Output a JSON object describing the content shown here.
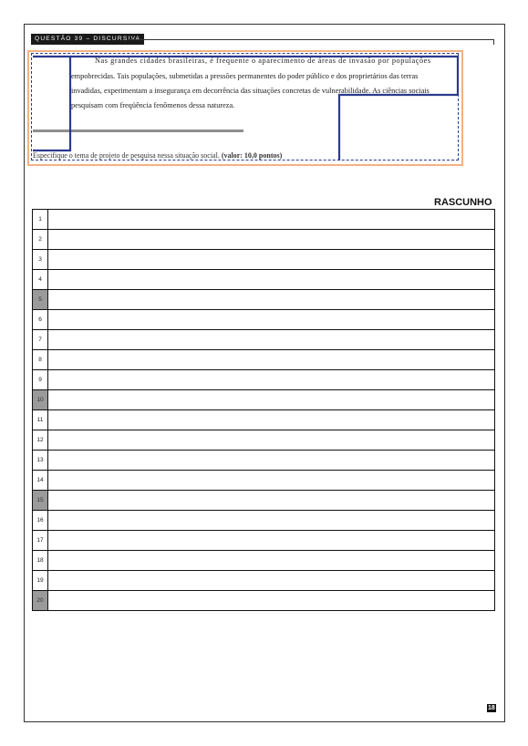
{
  "header": {
    "question_tag": "QUESTÃO 39 – DISCURSIVA"
  },
  "text_lines": [
    "Nas grandes cidades brasileiras, é frequente o aparecimento de áreas de invasão por populações",
    "empobrecidas. Tais populações, submetidas a pressões permanentes do poder público e dos proprietários das terras",
    "invadidas, experimentam a insegurança em decorrência das situações concretas de vulnerabilidade. As ciências sociais",
    "pesquisam com freqüência fenômenos dessa natureza."
  ],
  "task": {
    "text": "Especifique o tema de projeto de pesquisa nessa situação social.",
    "value": "(valor: 10,0 pontos)"
  },
  "draft": {
    "title": "RASCUNHO",
    "lines": [
      {
        "n": "1",
        "shaded": false
      },
      {
        "n": "2",
        "shaded": false
      },
      {
        "n": "3",
        "shaded": false
      },
      {
        "n": "4",
        "shaded": false
      },
      {
        "n": "5",
        "shaded": true
      },
      {
        "n": "6",
        "shaded": false
      },
      {
        "n": "7",
        "shaded": false
      },
      {
        "n": "8",
        "shaded": false
      },
      {
        "n": "9",
        "shaded": false
      },
      {
        "n": "10",
        "shaded": true
      },
      {
        "n": "11",
        "shaded": false
      },
      {
        "n": "12",
        "shaded": false
      },
      {
        "n": "13",
        "shaded": false
      },
      {
        "n": "14",
        "shaded": false
      },
      {
        "n": "15",
        "shaded": true
      },
      {
        "n": "16",
        "shaded": false
      },
      {
        "n": "17",
        "shaded": false
      },
      {
        "n": "18",
        "shaded": false
      },
      {
        "n": "19",
        "shaded": false
      },
      {
        "n": "20",
        "shaded": true
      }
    ]
  },
  "page_number": "18",
  "colors": {
    "highlight_border": "#f3b184",
    "selection_outline": "#2b3a8f",
    "shaded_cell": "#9a9a9a"
  }
}
